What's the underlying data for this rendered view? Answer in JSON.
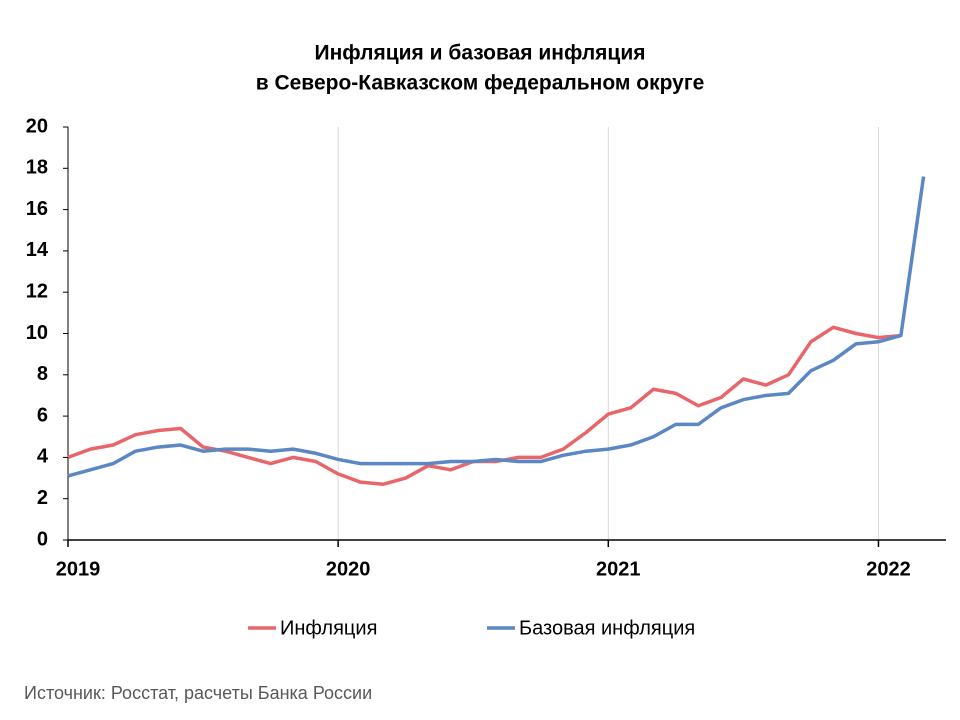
{
  "chart_data": {
    "type": "line",
    "title": [
      "Инфляция и базовая инфляция",
      "в Северо-Кавказском федеральном округе"
    ],
    "x": [
      2019,
      2019.083,
      2019.167,
      2019.25,
      2019.333,
      2019.417,
      2019.5,
      2019.583,
      2019.667,
      2019.75,
      2019.833,
      2019.917,
      2020,
      2020.083,
      2020.167,
      2020.25,
      2020.333,
      2020.417,
      2020.5,
      2020.583,
      2020.667,
      2020.75,
      2020.833,
      2020.917,
      2021,
      2021.083,
      2021.167,
      2021.25,
      2021.333,
      2021.417,
      2021.5,
      2021.583,
      2021.667,
      2021.75,
      2021.833,
      2021.917,
      2022,
      2022.083,
      2022.167
    ],
    "series": [
      {
        "name": "Инфляция",
        "color": "#e8666a",
        "values": [
          4.0,
          4.4,
          4.6,
          5.1,
          5.3,
          5.4,
          4.5,
          4.3,
          4.0,
          3.7,
          4.0,
          3.8,
          3.2,
          2.8,
          2.7,
          3.0,
          3.6,
          3.4,
          3.8,
          3.8,
          4.0,
          4.0,
          4.4,
          5.2,
          6.1,
          6.4,
          7.3,
          7.1,
          6.5,
          6.9,
          7.8,
          7.5,
          8.0,
          9.6,
          10.3,
          10.0,
          9.8,
          9.9,
          null
        ]
      },
      {
        "name": "Базовая инфляция",
        "color": "#5b87c5",
        "values": [
          3.1,
          3.4,
          3.7,
          4.3,
          4.5,
          4.6,
          4.3,
          4.4,
          4.4,
          4.3,
          4.4,
          4.2,
          3.9,
          3.7,
          3.7,
          3.7,
          3.7,
          3.8,
          3.8,
          3.9,
          3.8,
          3.8,
          4.1,
          4.3,
          4.4,
          4.6,
          5.0,
          5.6,
          5.6,
          6.4,
          6.8,
          7.0,
          7.1,
          8.2,
          8.7,
          9.5,
          9.6,
          9.9,
          17.6
        ]
      }
    ],
    "xlim": [
      2019,
      2022.25
    ],
    "xticks": [
      2019,
      2020,
      2021,
      2022
    ],
    "ylim": [
      0,
      20
    ],
    "yticks": [
      0,
      2,
      4,
      6,
      8,
      10,
      12,
      14,
      16,
      18,
      20
    ],
    "grid": "x",
    "legend": "bottom",
    "source": "Источник: Росстат, расчеты Банка России"
  }
}
